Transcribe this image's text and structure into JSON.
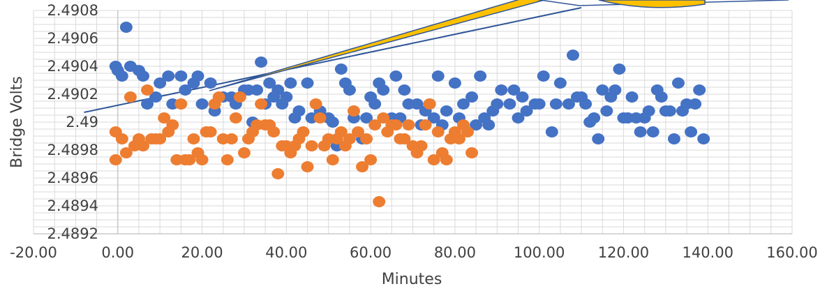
{
  "chart_data": {
    "type": "scatter",
    "xlabel": "Minutes",
    "ylabel": "Bridge Volts",
    "xlim": [
      -20,
      160
    ],
    "ylim": [
      2.4892,
      2.4908
    ],
    "x_ticks": [
      "-20.00",
      "0.00",
      "20.00",
      "40.00",
      "60.00",
      "80.00",
      "100.00",
      "120.00",
      "140.00",
      "160.00"
    ],
    "y_ticks": [
      "2.4892",
      "2.4894",
      "2.4896",
      "2.4898",
      "2.49",
      "2.4902",
      "2.4904",
      "2.4906",
      "2.4908"
    ],
    "grid": true,
    "colors": {
      "blue": "#4472c4",
      "orange": "#ed7d31",
      "trendline": "#2f5597",
      "arrow_fill": "#ffc000",
      "arrow_stroke": "#2f5597"
    },
    "trendline": {
      "x": [
        -8,
        110
      ],
      "y": [
        2.49007,
        2.49082
      ]
    },
    "series": [
      {
        "color": "blue",
        "points": [
          [
            -0.5,
            2.4904
          ],
          [
            0,
            2.49037
          ],
          [
            1,
            2.49033
          ],
          [
            2,
            2.49068
          ],
          [
            3,
            2.4904
          ],
          [
            5,
            2.49037
          ],
          [
            6,
            2.49033
          ],
          [
            7,
            2.49013
          ],
          [
            9,
            2.49018
          ],
          [
            10,
            2.49028
          ],
          [
            12,
            2.49033
          ],
          [
            13,
            2.49013
          ],
          [
            15,
            2.49033
          ],
          [
            16,
            2.49023
          ],
          [
            18,
            2.49028
          ],
          [
            19,
            2.49033
          ],
          [
            20,
            2.49013
          ],
          [
            22,
            2.49028
          ],
          [
            23,
            2.49008
          ],
          [
            25,
            2.49018
          ],
          [
            27,
            2.49018
          ],
          [
            28,
            2.49013
          ],
          [
            30,
            2.49023
          ],
          [
            31,
            2.49023
          ],
          [
            32,
            2.49
          ],
          [
            33,
            2.49023
          ],
          [
            34,
            2.49043
          ],
          [
            35,
            2.49013
          ],
          [
            36,
            2.49028
          ],
          [
            37,
            2.49018
          ],
          [
            38,
            2.49023
          ],
          [
            39,
            2.49013
          ],
          [
            40,
            2.49018
          ],
          [
            41,
            2.49028
          ],
          [
            42,
            2.49003
          ],
          [
            43,
            2.49008
          ],
          [
            45,
            2.49028
          ],
          [
            46,
            2.49003
          ],
          [
            48,
            2.49008
          ],
          [
            50,
            2.49003
          ],
          [
            51,
            2.49
          ],
          [
            52,
            2.48983
          ],
          [
            53,
            2.49038
          ],
          [
            54,
            2.49028
          ],
          [
            55,
            2.49023
          ],
          [
            56,
            2.49003
          ],
          [
            58,
            2.48988
          ],
          [
            59,
            2.49003
          ],
          [
            60,
            2.49018
          ],
          [
            61,
            2.49013
          ],
          [
            62,
            2.49028
          ],
          [
            63,
            2.49023
          ],
          [
            65,
            2.49003
          ],
          [
            66,
            2.49033
          ],
          [
            67,
            2.49003
          ],
          [
            68,
            2.49023
          ],
          [
            69,
            2.49013
          ],
          [
            71,
            2.49013
          ],
          [
            72,
            2.48998
          ],
          [
            73,
            2.49008
          ],
          [
            74,
            2.49013
          ],
          [
            75,
            2.49003
          ],
          [
            76,
            2.49033
          ],
          [
            77,
            2.48998
          ],
          [
            78,
            2.49008
          ],
          [
            80,
            2.49028
          ],
          [
            81,
            2.49003
          ],
          [
            82,
            2.49013
          ],
          [
            84,
            2.49018
          ],
          [
            85,
            2.48998
          ],
          [
            86,
            2.49033
          ],
          [
            87,
            2.49003
          ],
          [
            88,
            2.48998
          ],
          [
            89,
            2.49008
          ],
          [
            90,
            2.49013
          ],
          [
            91,
            2.49023
          ],
          [
            93,
            2.49013
          ],
          [
            94,
            2.49023
          ],
          [
            95,
            2.49003
          ],
          [
            96,
            2.49018
          ],
          [
            97,
            2.49008
          ],
          [
            99,
            2.49013
          ],
          [
            100,
            2.49013
          ],
          [
            101,
            2.49033
          ],
          [
            103,
            2.48993
          ],
          [
            104,
            2.49013
          ],
          [
            105,
            2.49028
          ],
          [
            107,
            2.49013
          ],
          [
            108,
            2.49048
          ],
          [
            109,
            2.49018
          ],
          [
            110,
            2.49018
          ],
          [
            111,
            2.49013
          ],
          [
            112,
            2.49
          ],
          [
            113,
            2.49003
          ],
          [
            114,
            2.48988
          ],
          [
            115,
            2.49023
          ],
          [
            116,
            2.49008
          ],
          [
            117,
            2.49018
          ],
          [
            118,
            2.49023
          ],
          [
            119,
            2.49038
          ],
          [
            120,
            2.49003
          ],
          [
            121,
            2.49003
          ],
          [
            122,
            2.49018
          ],
          [
            123,
            2.49003
          ],
          [
            124,
            2.48993
          ],
          [
            125,
            2.49003
          ],
          [
            126,
            2.49008
          ],
          [
            127,
            2.48993
          ],
          [
            128,
            2.49023
          ],
          [
            129,
            2.49018
          ],
          [
            130,
            2.49008
          ],
          [
            131,
            2.49008
          ],
          [
            132,
            2.48988
          ],
          [
            133,
            2.49028
          ],
          [
            134,
            2.49008
          ],
          [
            135,
            2.49013
          ],
          [
            136,
            2.48993
          ],
          [
            137,
            2.49013
          ],
          [
            138,
            2.49023
          ],
          [
            139,
            2.48988
          ]
        ]
      },
      {
        "color": "orange",
        "points": [
          [
            -0.5,
            2.48993
          ],
          [
            -0.5,
            2.48973
          ],
          [
            1,
            2.48988
          ],
          [
            2,
            2.48978
          ],
          [
            3,
            2.49018
          ],
          [
            4,
            2.48983
          ],
          [
            5,
            2.48988
          ],
          [
            6,
            2.48983
          ],
          [
            7,
            2.49023
          ],
          [
            8,
            2.48988
          ],
          [
            9,
            2.48988
          ],
          [
            10,
            2.48988
          ],
          [
            11,
            2.49003
          ],
          [
            12,
            2.48993
          ],
          [
            13,
            2.48998
          ],
          [
            14,
            2.48973
          ],
          [
            15,
            2.49013
          ],
          [
            16,
            2.48973
          ],
          [
            17,
            2.48973
          ],
          [
            18,
            2.48988
          ],
          [
            19,
            2.48978
          ],
          [
            20,
            2.48973
          ],
          [
            21,
            2.48993
          ],
          [
            22,
            2.48993
          ],
          [
            23,
            2.49013
          ],
          [
            24,
            2.49018
          ],
          [
            25,
            2.48988
          ],
          [
            26,
            2.48973
          ],
          [
            27,
            2.48988
          ],
          [
            28,
            2.49003
          ],
          [
            29,
            2.49018
          ],
          [
            30,
            2.48978
          ],
          [
            31,
            2.48988
          ],
          [
            32,
            2.48993
          ],
          [
            33,
            2.48998
          ],
          [
            34,
            2.49013
          ],
          [
            35,
            2.48998
          ],
          [
            36,
            2.48998
          ],
          [
            37,
            2.48993
          ],
          [
            38,
            2.48963
          ],
          [
            39,
            2.48983
          ],
          [
            40,
            2.48983
          ],
          [
            41,
            2.48978
          ],
          [
            42,
            2.48983
          ],
          [
            43,
            2.48988
          ],
          [
            44,
            2.48993
          ],
          [
            45,
            2.48968
          ],
          [
            46,
            2.48983
          ],
          [
            47,
            2.49013
          ],
          [
            48,
            2.49003
          ],
          [
            49,
            2.48983
          ],
          [
            50,
            2.48988
          ],
          [
            51,
            2.48973
          ],
          [
            52,
            2.48988
          ],
          [
            53,
            2.48993
          ],
          [
            54,
            2.48983
          ],
          [
            55,
            2.48988
          ],
          [
            56,
            2.49008
          ],
          [
            57,
            2.48993
          ],
          [
            58,
            2.48968
          ],
          [
            59,
            2.48988
          ],
          [
            60,
            2.48973
          ],
          [
            61,
            2.48998
          ],
          [
            62,
            2.48943
          ],
          [
            63,
            2.49003
          ],
          [
            64,
            2.48993
          ],
          [
            65,
            2.48998
          ],
          [
            66,
            2.48998
          ],
          [
            67,
            2.48988
          ],
          [
            68,
            2.48988
          ],
          [
            69,
            2.48998
          ],
          [
            70,
            2.48983
          ],
          [
            71,
            2.48978
          ],
          [
            72,
            2.48983
          ],
          [
            73,
            2.48998
          ],
          [
            74,
            2.49013
          ],
          [
            75,
            2.48973
          ],
          [
            76,
            2.48993
          ],
          [
            77,
            2.48978
          ],
          [
            78,
            2.48973
          ],
          [
            79,
            2.48988
          ],
          [
            80,
            2.48993
          ],
          [
            81,
            2.48988
          ],
          [
            82,
            2.48998
          ],
          [
            83,
            2.48993
          ],
          [
            84,
            2.48978
          ]
        ]
      }
    ]
  }
}
